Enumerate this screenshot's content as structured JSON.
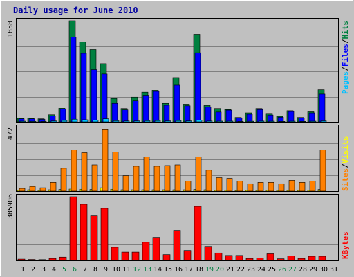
{
  "chart_data": {
    "type": "bar",
    "title": "Daily usage for June 2010",
    "x": [
      "1",
      "2",
      "3",
      "4",
      "5",
      "6",
      "7",
      "8",
      "9",
      "10",
      "11",
      "12",
      "13",
      "14",
      "15",
      "16",
      "17",
      "18",
      "19",
      "20",
      "21",
      "22",
      "23",
      "24",
      "25",
      "26",
      "27",
      "28",
      "29",
      "30",
      "31"
    ],
    "weekend_days": [
      "5",
      "6",
      "12",
      "13",
      "19",
      "20",
      "26",
      "27"
    ],
    "panels": [
      {
        "name": "hits-files-pages",
        "ymax": 1858,
        "ymax_label": "1858",
        "legend": [
          "Pages",
          "/",
          "Files",
          "/",
          "Hits"
        ],
        "legend_colors": [
          "#00c0ff",
          "#000000",
          "#0000ff",
          "#000000",
          "#008040"
        ],
        "series": [
          {
            "name": "Hits",
            "color": "#008040",
            "values": [
              65,
              65,
              55,
              130,
              250,
              1858,
              1470,
              1330,
              1070,
              430,
              245,
              455,
              545,
              580,
              340,
              815,
              325,
              1610,
              300,
              245,
              225,
              80,
              165,
              245,
              155,
              100,
              205,
              80,
              185,
              590,
              0
            ]
          },
          {
            "name": "Files",
            "color": "#0000ff",
            "values": [
              55,
              55,
              45,
              110,
              235,
              1560,
              1260,
              960,
              880,
              340,
              220,
              385,
              490,
              560,
              305,
              675,
              295,
              1270,
              270,
              180,
              215,
              70,
              140,
              225,
              125,
              85,
              190,
              70,
              165,
              510,
              0
            ]
          },
          {
            "name": "Pages",
            "color": "#00c0ff",
            "values": [
              12,
              10,
              9,
              16,
              25,
              48,
              38,
              34,
              55,
              20,
              16,
              17,
              20,
              22,
              17,
              22,
              17,
              32,
              15,
              13,
              13,
              9,
              11,
              14,
              12,
              9,
              12,
              9,
              12,
              18,
              0
            ]
          }
        ]
      },
      {
        "name": "visits-sites",
        "ymax": 472,
        "ymax_label": "472",
        "legend": [
          "Sites",
          "/",
          "Visits"
        ],
        "legend_colors": [
          "#ff8000",
          "#000000",
          "#ffff00"
        ],
        "series": [
          {
            "name": "Visits",
            "color": "#ffff00",
            "values": [
              8,
              10,
              8,
              10,
              12,
              15,
              14,
              12,
              25,
              14,
              10,
              10,
              10,
              10,
              10,
              10,
              10,
              12,
              10,
              8,
              8,
              6,
              8,
              8,
              8,
              6,
              8,
              6,
              8,
              12,
              0
            ]
          },
          {
            "name": "Sites",
            "color": "#ff8000",
            "values": [
              20,
              35,
              25,
              65,
              170,
              305,
              285,
              195,
              455,
              290,
              115,
              185,
              255,
              185,
              190,
              195,
              75,
              255,
              155,
              100,
              95,
              75,
              55,
              65,
              65,
              55,
              80,
              65,
              75,
              305,
              0
            ]
          }
        ]
      },
      {
        "name": "kbytes",
        "ymax": 385906,
        "ymax_label": "385906",
        "legend": [
          "KBytes"
        ],
        "legend_colors": [
          "#ff0000"
        ],
        "series": [
          {
            "name": "KBytes",
            "color": "#ff0000",
            "values": [
              8000,
              6000,
              5000,
              12000,
              20000,
              395000,
              340000,
              270000,
              315000,
              80000,
              50000,
              50000,
              110000,
              140000,
              35000,
              182000,
              60000,
              327000,
              85000,
              45000,
              30000,
              30000,
              12000,
              15000,
              40000,
              10000,
              28000,
              12000,
              25000,
              25000,
              0
            ]
          }
        ]
      }
    ]
  }
}
